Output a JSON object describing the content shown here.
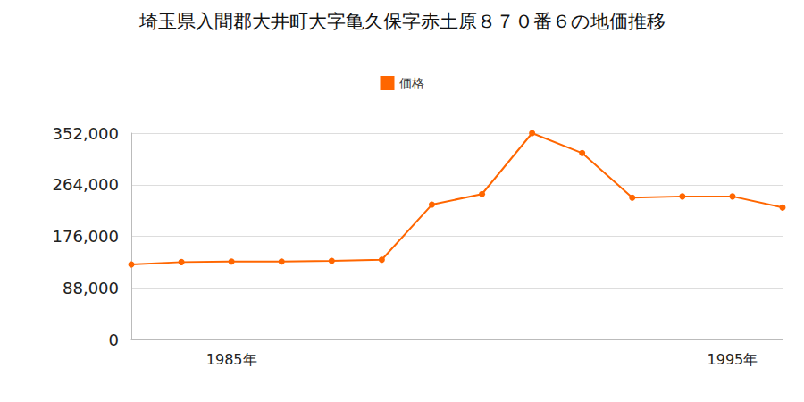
{
  "chart_data": {
    "type": "line",
    "title": "埼玉県入間郡大井町大字亀久保字赤土原８７０番６の地価推移",
    "categories": [
      null,
      null,
      "1985年",
      null,
      null,
      null,
      null,
      null,
      null,
      null,
      null,
      null,
      "1995年",
      null
    ],
    "series": [
      {
        "name": "価格",
        "color": "#ff6600",
        "marker": "circle",
        "values": [
          128000,
          132000,
          133000,
          133000,
          134000,
          136000,
          230000,
          248000,
          352000,
          318000,
          242000,
          244000,
          244000,
          225000
        ]
      }
    ],
    "ylim": [
      0,
      352000
    ],
    "yticks": [
      {
        "value": 0,
        "label": "0"
      },
      {
        "value": 88000,
        "label": "88,000"
      },
      {
        "value": 176000,
        "label": "176,000"
      },
      {
        "value": 264000,
        "label": "264,000"
      },
      {
        "value": 352000,
        "label": "352,000"
      }
    ],
    "grid": true,
    "legend": "top"
  }
}
